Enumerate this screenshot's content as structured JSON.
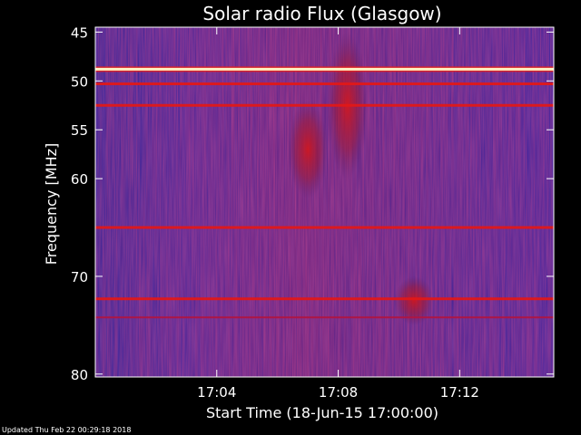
{
  "chart_data": {
    "type": "heatmap",
    "title": "Solar radio Flux (Glasgow)",
    "xlabel": "Start Time (18-Jun-15 17:00:00)",
    "ylabel": "Frequency [MHz]",
    "xlim_minutes": [
      0,
      15.1
    ],
    "ylim_mhz": [
      44.5,
      80.3
    ],
    "y_reversed": true,
    "x_ticks": [
      {
        "value": 4,
        "label": "17:04"
      },
      {
        "value": 8,
        "label": "17:08"
      },
      {
        "value": 12,
        "label": "17:12"
      }
    ],
    "y_ticks": [
      {
        "value": 45,
        "label": "45"
      },
      {
        "value": 50,
        "label": "50"
      },
      {
        "value": 55,
        "label": "55"
      },
      {
        "value": 60,
        "label": "60"
      },
      {
        "value": 70,
        "label": "70"
      },
      {
        "value": 80,
        "label": "80"
      }
    ],
    "colormap": {
      "low": "#0a1a8c",
      "mid": "#3a1a86",
      "high": "#c81414",
      "peak": "#ffffaa"
    },
    "emission_bands_mhz": [
      {
        "freq": 48.8,
        "intensity": "peak"
      },
      {
        "freq": 50.3,
        "intensity": "high"
      },
      {
        "freq": 52.5,
        "intensity": "high"
      },
      {
        "freq": 65.0,
        "intensity": "high"
      },
      {
        "freq": 72.3,
        "intensity": "high"
      },
      {
        "freq": 74.2,
        "intensity": "medium"
      }
    ],
    "burst_regions": [
      {
        "time_minutes": 7.0,
        "freq_range_mhz": [
          52,
          62
        ],
        "intensity": "high"
      },
      {
        "time_minutes": 8.3,
        "freq_range_mhz": [
          45,
          60
        ],
        "intensity": "high"
      },
      {
        "time_minutes": 10.5,
        "freq_range_mhz": [
          70,
          75
        ],
        "intensity": "high"
      }
    ]
  },
  "footer": {
    "updated_text": "Updated Thu Feb 22 00:29:18 2018"
  }
}
